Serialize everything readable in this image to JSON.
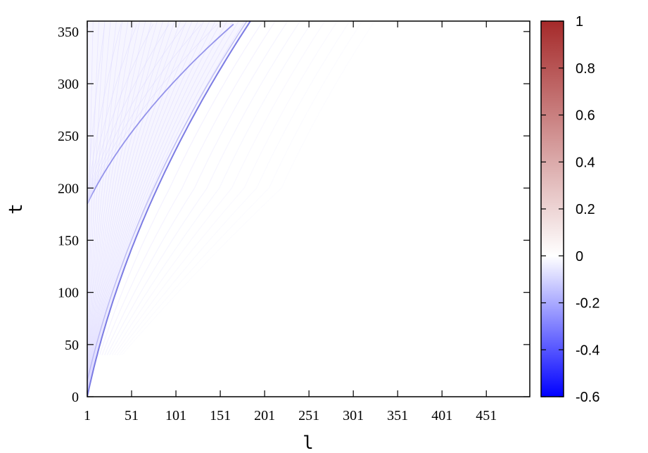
{
  "chart_data": {
    "type": "heatmap",
    "title": "",
    "xlabel": "l",
    "ylabel": "t",
    "x_ticks": [
      "1",
      "51",
      "101",
      "151",
      "201",
      "251",
      "301",
      "351",
      "401",
      "451"
    ],
    "x_tick_values": [
      1,
      51,
      101,
      151,
      201,
      251,
      301,
      351,
      401,
      451
    ],
    "y_ticks": [
      "0",
      "50",
      "100",
      "150",
      "200",
      "250",
      "300",
      "350"
    ],
    "y_tick_values": [
      0,
      50,
      100,
      150,
      200,
      250,
      300,
      350
    ],
    "xlim": [
      1,
      500
    ],
    "ylim": [
      0,
      360
    ],
    "colorbar": {
      "ticks": [
        "1",
        "0.8",
        "0.6",
        "0.4",
        "0.2",
        "0",
        "-0.2",
        "-0.4",
        "-0.6"
      ],
      "tick_values": [
        1,
        0.8,
        0.6,
        0.4,
        0.2,
        0,
        -0.2,
        -0.4,
        -0.6
      ],
      "range": [
        -0.6,
        1
      ],
      "colors": {
        "max": "#a52a2a",
        "zero": "#ffffff",
        "min": "#0000ff"
      }
    },
    "features": [
      {
        "name": "front",
        "shape": "l ≈ 1 + a·t + b·t²",
        "start": [
          1,
          0
        ],
        "end": [
          185,
          360
        ],
        "intensity": -0.3
      },
      {
        "name": "second-front",
        "shape": "rises from l=1 at t≈185",
        "start": [
          1,
          185
        ],
        "end": [
          175,
          360
        ],
        "intensity": -0.15
      },
      {
        "name": "fringe-region",
        "extent_l": [
          1,
          330
        ],
        "intensity": -0.05
      }
    ],
    "grid": false,
    "legend": "colorbar-right"
  }
}
